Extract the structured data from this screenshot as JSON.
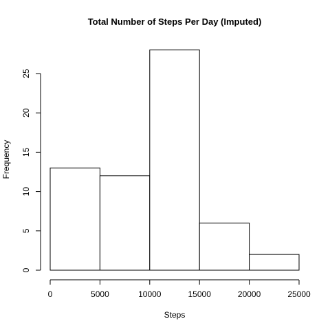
{
  "chart_data": {
    "type": "bar",
    "subtype": "histogram",
    "title": "Total Number of Steps Per Day (Imputed)",
    "xlabel": "Steps",
    "ylabel": "Frequency",
    "bins": [
      {
        "start": 0,
        "end": 5000,
        "count": 13
      },
      {
        "start": 5000,
        "end": 10000,
        "count": 12
      },
      {
        "start": 10000,
        "end": 15000,
        "count": 28
      },
      {
        "start": 15000,
        "end": 20000,
        "count": 6
      },
      {
        "start": 20000,
        "end": 25000,
        "count": 2
      }
    ],
    "xlim": [
      0,
      25000
    ],
    "ylim": [
      0,
      28
    ],
    "x_ticks": [
      0,
      5000,
      10000,
      15000,
      20000,
      25000
    ],
    "y_ticks": [
      0,
      5,
      10,
      15,
      20,
      25
    ],
    "grid": false,
    "bar_fill": "#ffffff",
    "bar_stroke": "#000000"
  }
}
